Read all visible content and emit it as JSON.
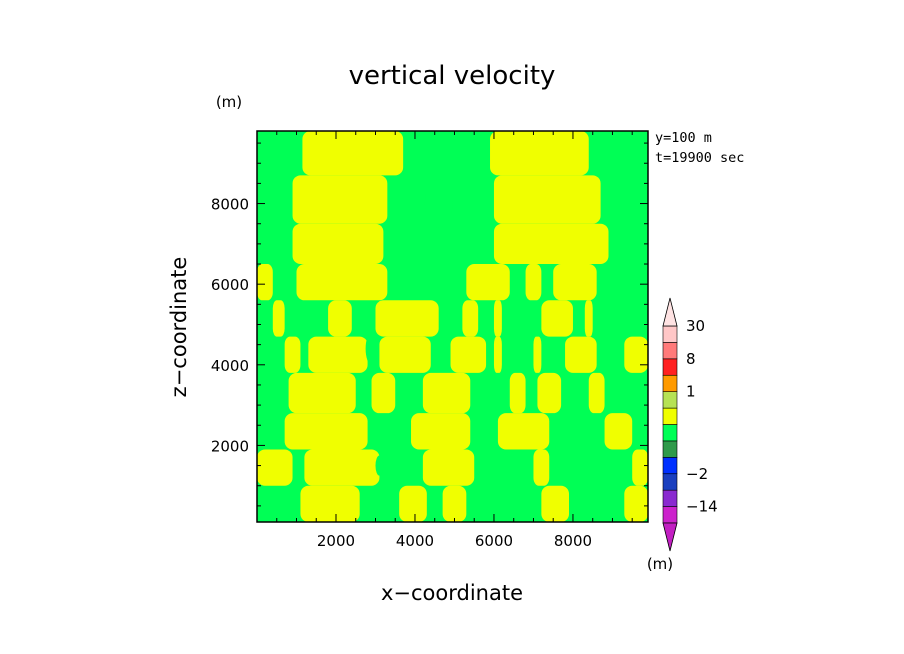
{
  "chart_data": {
    "type": "heatmap",
    "title": "vertical velocity",
    "xlabel": "x−coordinate",
    "ylabel": "z−coordinate",
    "x_unit": "(m)",
    "y_unit": "(m)",
    "annotation_lines": [
      "y=100 m",
      "t=19900 sec"
    ],
    "xlim": [
      0,
      9900
    ],
    "ylim": [
      100,
      9800
    ],
    "xticks": [
      2000,
      4000,
      6000,
      8000
    ],
    "yticks": [
      2000,
      4000,
      6000,
      8000
    ],
    "xtick_labels": [
      "2000",
      "4000",
      "6000",
      "8000"
    ],
    "ytick_labels": [
      "2000",
      "4000",
      "6000",
      "8000"
    ],
    "colorbar": {
      "unit": "(m)",
      "levels": [
        -30,
        -14,
        -8,
        -2,
        -1,
        -0.5,
        0,
        0.5,
        1,
        2,
        8,
        14,
        30
      ],
      "colors": [
        "#cc22cc",
        "#8a2ad0",
        "#1a3fbf",
        "#0030ff",
        "#2f9a4a",
        "#00ff55",
        "#f0ff00",
        "#b6e255",
        "#ff9a00",
        "#ff2020",
        "#ff7a7a",
        "#ffc7c7"
      ],
      "tick_labels": [
        {
          "value": 30,
          "text": "30"
        },
        {
          "value": 8,
          "text": "8"
        },
        {
          "value": 1,
          "text": "1"
        },
        {
          "value": -2,
          "text": "−2"
        },
        {
          "value": -14,
          "text": "−14"
        }
      ],
      "extend": "both"
    },
    "field": {
      "background": "#00ff55",
      "foreground": "#f0ff00",
      "foreground_range": [
        0,
        0.5
      ],
      "background_range": [
        -0.5,
        0
      ],
      "bands": [
        {
          "z": [
            9800,
            8700
          ],
          "yellow_x": [
            [
              1150,
              3700
            ],
            [
              5900,
              8400
            ]
          ]
        },
        {
          "z": [
            8700,
            7500
          ],
          "yellow_x": [
            [
              900,
              3300
            ],
            [
              6000,
              8700
            ]
          ]
        },
        {
          "z": [
            7500,
            6500
          ],
          "yellow_x": [
            [
              900,
              3200
            ],
            [
              6000,
              8900
            ]
          ]
        },
        {
          "z": [
            6500,
            5600
          ],
          "yellow_x": [
            [
              0,
              400
            ],
            [
              1000,
              3300
            ],
            [
              5300,
              6400
            ],
            [
              6800,
              7200
            ],
            [
              7500,
              8600
            ]
          ]
        },
        {
          "z": [
            5600,
            4700
          ],
          "yellow_x": [
            [
              400,
              700
            ],
            [
              1800,
              2400
            ],
            [
              3000,
              4600
            ],
            [
              5200,
              5600
            ],
            [
              6000,
              6200
            ],
            [
              7200,
              8000
            ],
            [
              8300,
              8500
            ]
          ]
        },
        {
          "z": [
            4700,
            3800
          ],
          "yellow_x": [
            [
              700,
              1100
            ],
            [
              1300,
              2800
            ],
            [
              3100,
              4400
            ],
            [
              4900,
              5800
            ],
            [
              6000,
              6200
            ],
            [
              7000,
              7200
            ],
            [
              7800,
              8600
            ],
            [
              9300,
              9900
            ]
          ]
        },
        {
          "z": [
            3800,
            2800
          ],
          "yellow_x": [
            [
              800,
              2500
            ],
            [
              2900,
              3500
            ],
            [
              4200,
              5400
            ],
            [
              6400,
              6800
            ],
            [
              7100,
              7700
            ],
            [
              8400,
              8800
            ]
          ]
        },
        {
          "z": [
            2800,
            1900
          ],
          "yellow_x": [
            [
              700,
              2800
            ],
            [
              3900,
              5400
            ],
            [
              6100,
              7400
            ],
            [
              8800,
              9500
            ]
          ]
        },
        {
          "z": [
            1900,
            1000
          ],
          "yellow_x": [
            [
              0,
              900
            ],
            [
              1200,
              3100
            ],
            [
              4200,
              5500
            ],
            [
              7000,
              7400
            ],
            [
              9500,
              9900
            ]
          ]
        },
        {
          "z": [
            1000,
            100
          ],
          "yellow_x": [
            [
              1100,
              2600
            ],
            [
              3600,
              4300
            ],
            [
              4700,
              5300
            ],
            [
              7200,
              7900
            ],
            [
              9300,
              9900
            ]
          ]
        }
      ],
      "features": [
        {
          "x": 4600,
          "z": 8000,
          "w": 700,
          "h": 1200
        },
        {
          "x": 2900,
          "z": 4400,
          "w": 300,
          "h": 800
        },
        {
          "x": 3100,
          "z": 1500,
          "w": 200,
          "h": 500
        }
      ]
    }
  }
}
